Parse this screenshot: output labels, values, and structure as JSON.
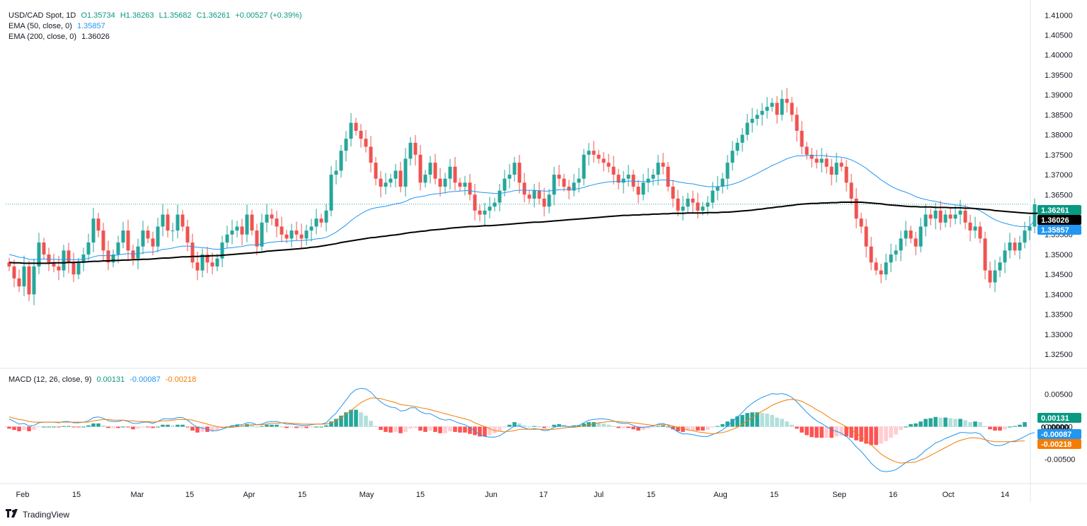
{
  "header": {
    "symbol": "USD/CAD Spot, 1D",
    "ohlc": {
      "o": "O1.35734",
      "h": "H1.36263",
      "l": "L1.35682",
      "c": "C1.36261",
      "chg": "+0.00527 (+0.39%)"
    },
    "ema50": {
      "label": "EMA (50, close, 0)",
      "value": "1.35857"
    },
    "ema200": {
      "label": "EMA (200, close, 0)",
      "value": "1.36026"
    },
    "macd": {
      "label": "MACD (12, 26, close, 9)",
      "hist": "0.00131",
      "macd": "-0.00087",
      "signal": "-0.00218"
    }
  },
  "brand": {
    "name": "TradingView"
  },
  "colors": {
    "up": "#26a69a",
    "down": "#ef5350",
    "ema50": "#2196f3",
    "ema200": "#000000",
    "macd": "#2196f3",
    "signal": "#f57c00"
  },
  "chart_data": {
    "type": "candlestick",
    "price_axis": {
      "ticks": [
        "1.41000",
        "1.40500",
        "1.40000",
        "1.39500",
        "1.39000",
        "1.38500",
        "1.38000",
        "1.37500",
        "1.37000",
        "1.36500",
        "1.36000",
        "1.35500",
        "1.35000",
        "1.34500",
        "1.34000",
        "1.33500",
        "1.33000",
        "1.32500"
      ],
      "range": [
        1.322,
        1.412
      ]
    },
    "macd_axis": {
      "ticks": [
        "0.00500",
        "0.00000",
        "-0.00500"
      ],
      "range": [
        -0.0083,
        0.0082
      ]
    },
    "time_axis": {
      "labels": [
        "Feb",
        "15",
        "Mar",
        "15",
        "Apr",
        "15",
        "May",
        "15",
        "Jun",
        "17",
        "Jul",
        "15",
        "Aug",
        "15",
        "Sep",
        "16",
        "Oct",
        "14"
      ]
    },
    "price_labels": [
      {
        "text": "1.36261",
        "value": 1.36261,
        "color": "#089981"
      },
      {
        "text": "1.36026",
        "value": 1.36026,
        "color": "#000000"
      },
      {
        "text": "1.35857",
        "value": 1.35857,
        "color": "#2196f3"
      }
    ],
    "macd_labels": [
      {
        "text": "0.00131",
        "value": 0.00131,
        "color": "#089981"
      },
      {
        "text": "0.00000",
        "value": 0.0,
        "color": "#ffffff",
        "textColor": "#131722"
      },
      {
        "text": "-0.00087",
        "value": -0.00087,
        "color": "#2196f3"
      },
      {
        "text": "-0.00218",
        "value": -0.00218,
        "color": "#f57c00"
      }
    ],
    "closes": [
      1.347,
      1.344,
      1.342,
      1.347,
      1.34,
      1.347,
      1.353,
      1.35,
      1.348,
      1.347,
      1.346,
      1.351,
      1.348,
      1.345,
      1.348,
      1.35,
      1.353,
      1.359,
      1.356,
      1.351,
      1.348,
      1.35,
      1.353,
      1.356,
      1.351,
      1.349,
      1.352,
      1.356,
      1.354,
      1.352,
      1.357,
      1.36,
      1.356,
      1.356,
      1.36,
      1.357,
      1.353,
      1.348,
      1.346,
      1.35,
      1.348,
      1.347,
      1.349,
      1.353,
      1.355,
      1.356,
      1.357,
      1.355,
      1.36,
      1.356,
      1.352,
      1.358,
      1.36,
      1.359,
      1.357,
      1.355,
      1.354,
      1.356,
      1.355,
      1.354,
      1.356,
      1.357,
      1.359,
      1.358,
      1.361,
      1.37,
      1.371,
      1.376,
      1.379,
      1.383,
      1.381,
      1.379,
      1.377,
      1.373,
      1.369,
      1.367,
      1.368,
      1.369,
      1.371,
      1.367,
      1.374,
      1.378,
      1.375,
      1.368,
      1.37,
      1.373,
      1.369,
      1.367,
      1.369,
      1.372,
      1.368,
      1.367,
      1.368,
      1.365,
      1.361,
      1.36,
      1.361,
      1.362,
      1.363,
      1.366,
      1.369,
      1.37,
      1.373,
      1.368,
      1.365,
      1.364,
      1.366,
      1.364,
      1.362,
      1.365,
      1.37,
      1.369,
      1.367,
      1.366,
      1.368,
      1.369,
      1.375,
      1.376,
      1.375,
      1.374,
      1.373,
      1.372,
      1.37,
      1.368,
      1.369,
      1.37,
      1.367,
      1.365,
      1.368,
      1.369,
      1.37,
      1.373,
      1.372,
      1.367,
      1.364,
      1.361,
      1.362,
      1.364,
      1.363,
      1.361,
      1.362,
      1.363,
      1.366,
      1.367,
      1.369,
      1.373,
      1.376,
      1.378,
      1.38,
      1.383,
      1.384,
      1.385,
      1.386,
      1.387,
      1.388,
      1.385,
      1.389,
      1.388,
      1.385,
      1.381,
      1.377,
      1.375,
      1.374,
      1.373,
      1.374,
      1.372,
      1.37,
      1.373,
      1.372,
      1.368,
      1.364,
      1.359,
      1.357,
      1.352,
      1.348,
      1.346,
      1.345,
      1.348,
      1.35,
      1.351,
      1.354,
      1.356,
      1.354,
      1.352,
      1.357,
      1.36,
      1.359,
      1.361,
      1.358,
      1.36,
      1.359,
      1.36,
      1.361,
      1.358,
      1.356,
      1.357,
      1.354,
      1.346,
      1.343,
      1.346,
      1.348,
      1.351,
      1.353,
      1.351,
      1.353,
      1.356,
      1.357,
      1.3626
    ],
    "ema50": [
      1.35,
      1.3497,
      1.3493,
      1.3492,
      1.3488,
      1.3487,
      1.3488,
      1.3489,
      1.3488,
      1.3488,
      1.3487,
      1.3488,
      1.3488,
      1.3487,
      1.3487,
      1.3488,
      1.349,
      1.3494,
      1.3497,
      1.3497,
      1.3497,
      1.3497,
      1.3499,
      1.3501,
      1.3502,
      1.3501,
      1.3502,
      1.3504,
      1.3506,
      1.3506,
      1.3509,
      1.3513,
      1.3514,
      1.3516,
      1.3519,
      1.3521,
      1.3521,
      1.352,
      1.3518,
      1.3517,
      1.3516,
      1.3514,
      1.3513,
      1.3514,
      1.3516,
      1.3517,
      1.3519,
      1.352,
      1.3523,
      1.3524,
      1.3524,
      1.3526,
      1.3529,
      1.3531,
      1.3532,
      1.3533,
      1.3533,
      1.3534,
      1.3535,
      1.3535,
      1.3536,
      1.3537,
      1.3539,
      1.354,
      1.3543,
      1.3549,
      1.3556,
      1.3565,
      1.3574,
      1.3585,
      1.3594,
      1.3602,
      1.3609,
      1.3614,
      1.3617,
      1.3619,
      1.3621,
      1.3624,
      1.3627,
      1.3629,
      1.3633,
      1.3639,
      1.3643,
      1.3645,
      1.3647,
      1.365,
      1.3652,
      1.3653,
      1.3655,
      1.3657,
      1.3658,
      1.3659,
      1.366,
      1.366,
      1.3658,
      1.3656,
      1.3655,
      1.3654,
      1.3653,
      1.3653,
      1.3655,
      1.3657,
      1.366,
      1.3661,
      1.3661,
      1.3661,
      1.3661,
      1.366,
      1.3659,
      1.3659,
      1.3661,
      1.3662,
      1.3663,
      1.3663,
      1.3664,
      1.3665,
      1.3668,
      1.3672,
      1.3675,
      1.3678,
      1.368,
      1.3682,
      1.3683,
      1.3683,
      1.3683,
      1.3684,
      1.3684,
      1.3683,
      1.3683,
      1.3683,
      1.3684,
      1.3686,
      1.3687,
      1.3686,
      1.3685,
      1.3682,
      1.368,
      1.3678,
      1.3677,
      1.3674,
      1.3672,
      1.367,
      1.367,
      1.367,
      1.3671,
      1.3673,
      1.3676,
      1.368,
      1.3685,
      1.3691,
      1.3697,
      1.3703,
      1.371,
      1.3716,
      1.3723,
      1.3728,
      1.3734,
      1.374,
      1.3744,
      1.3747,
      1.3747,
      1.3748,
      1.3748,
      1.3748,
      1.3748,
      1.3747,
      1.3745,
      1.3745,
      1.3744,
      1.3741,
      1.3737,
      1.3731,
      1.3724,
      1.3716,
      1.3706,
      1.3697,
      1.3687,
      1.3679,
      1.3671,
      1.3665,
      1.366,
      1.3656,
      1.3651,
      1.3645,
      1.3641,
      1.3638,
      1.3635,
      1.3633,
      1.363,
      1.3628,
      1.3626,
      1.3624,
      1.3623,
      1.362,
      1.3617,
      1.3614,
      1.361,
      1.3602,
      1.3594,
      1.3587,
      1.3582,
      1.3578,
      1.3575,
      1.3572,
      1.357,
      1.357,
      1.357,
      1.3586
    ],
    "ema200": [
      1.348,
      1.3479,
      1.3479,
      1.3478,
      1.3478,
      1.3478,
      1.3478,
      1.3478,
      1.3478,
      1.3479,
      1.3479,
      1.3479,
      1.348,
      1.348,
      1.3481,
      1.3481,
      1.3482,
      1.3483,
      1.3483,
      1.3484,
      1.3484,
      1.3485,
      1.3485,
      1.3486,
      1.3486,
      1.3487,
      1.3487,
      1.3488,
      1.3488,
      1.3489,
      1.349,
      1.3491,
      1.3491,
      1.3492,
      1.3493,
      1.3494,
      1.3494,
      1.3495,
      1.3495,
      1.3496,
      1.3496,
      1.3497,
      1.3497,
      1.3498,
      1.3499,
      1.35,
      1.3501,
      1.3502,
      1.3503,
      1.3504,
      1.3505,
      1.3506,
      1.3508,
      1.3509,
      1.351,
      1.3511,
      1.3512,
      1.3513,
      1.3514,
      1.3515,
      1.3516,
      1.3518,
      1.3519,
      1.3521,
      1.3523,
      1.3525,
      1.3527,
      1.353,
      1.3532,
      1.3534,
      1.3536,
      1.3538,
      1.354,
      1.3542,
      1.3543,
      1.3545,
      1.3546,
      1.3548,
      1.3549,
      1.3551,
      1.3553,
      1.3555,
      1.3556,
      1.3558,
      1.3559,
      1.3561,
      1.3562,
      1.3563,
      1.3564,
      1.3566,
      1.3567,
      1.3568,
      1.3569,
      1.357,
      1.357,
      1.3571,
      1.3572,
      1.3572,
      1.3573,
      1.3574,
      1.3575,
      1.3576,
      1.3577,
      1.3578,
      1.3579,
      1.358,
      1.3581,
      1.3581,
      1.3582,
      1.3583,
      1.3584,
      1.3585,
      1.3586,
      1.3587,
      1.3588,
      1.3589,
      1.359,
      1.3591,
      1.3592,
      1.3593,
      1.3594,
      1.3595,
      1.3596,
      1.3597,
      1.3598,
      1.3598,
      1.3599,
      1.3599,
      1.36,
      1.36,
      1.3601,
      1.3601,
      1.3602,
      1.3602,
      1.3603,
      1.3603,
      1.3603,
      1.3604,
      1.3604,
      1.3604,
      1.3604,
      1.3605,
      1.3605,
      1.3605,
      1.3606,
      1.3606,
      1.3607,
      1.3608,
      1.3609,
      1.361,
      1.3611,
      1.3613,
      1.3614,
      1.3616,
      1.3617,
      1.3619,
      1.362,
      1.3622,
      1.3623,
      1.3625,
      1.3626,
      1.3627,
      1.3628,
      1.3628,
      1.3629,
      1.3629,
      1.363,
      1.363,
      1.3631,
      1.3631,
      1.3631,
      1.3631,
      1.3631,
      1.363,
      1.3629,
      1.3628,
      1.3627,
      1.3625,
      1.3624,
      1.3623,
      1.3622,
      1.3621,
      1.362,
      1.362,
      1.3619,
      1.3619,
      1.3619,
      1.3618,
      1.3618,
      1.3618,
      1.3617,
      1.3617,
      1.3617,
      1.3616,
      1.3616,
      1.3615,
      1.3614,
      1.3613,
      1.3612,
      1.361,
      1.3609,
      1.3608,
      1.3607,
      1.3606,
      1.3605,
      1.3604,
      1.3603,
      1.3603,
      1.3603
    ],
    "macd": [
      0.0012,
      0.0008,
      0.0004,
      0.0005,
      0.0001,
      0.0002,
      0.0006,
      0.0007,
      0.0007,
      0.0007,
      0.0006,
      0.0008,
      0.0008,
      0.0006,
      0.0006,
      0.0007,
      0.0009,
      0.0014,
      0.0015,
      0.0013,
      0.0009,
      0.0008,
      0.0008,
      0.001,
      0.0008,
      0.0005,
      0.0005,
      0.0007,
      0.0007,
      0.0005,
      0.0008,
      0.0012,
      0.0012,
      0.0012,
      0.0014,
      0.0014,
      0.001,
      0.0004,
      -0.0001,
      -0.0002,
      -0.0004,
      -0.0006,
      -0.0006,
      -0.0004,
      -0.0001,
      0.0001,
      0.0003,
      0.0003,
      0.0006,
      0.0006,
      0.0003,
      0.0004,
      0.0007,
      0.0008,
      0.0008,
      0.0006,
      0.0004,
      0.0004,
      0.0003,
      0.0002,
      0.0002,
      0.0003,
      0.0004,
      0.0004,
      0.0006,
      0.0014,
      0.0021,
      0.0031,
      0.0041,
      0.0051,
      0.0057,
      0.0059,
      0.0058,
      0.0053,
      0.0045,
      0.0038,
      0.0033,
      0.003,
      0.0029,
      0.0024,
      0.0025,
      0.0029,
      0.0029,
      0.0023,
      0.002,
      0.002,
      0.0016,
      0.0012,
      0.001,
      0.0011,
      0.0008,
      0.0005,
      0.0003,
      -0.0001,
      -0.0007,
      -0.0012,
      -0.0015,
      -0.0016,
      -0.0016,
      -0.0014,
      -0.0009,
      -0.0004,
      0.0001,
      0.0001,
      -0.0002,
      -0.0004,
      -0.0003,
      -0.0004,
      -0.0006,
      -0.0005,
      -0.0001,
      0.0001,
      0.0001,
      0.0,
      0.0001,
      0.0002,
      0.0006,
      0.001,
      0.0011,
      0.0012,
      0.0012,
      0.0011,
      0.0009,
      0.0006,
      0.0005,
      0.0005,
      0.0002,
      -0.0001,
      -0.0001,
      0.0,
      0.0001,
      0.0004,
      0.0005,
      0.0002,
      -0.0003,
      -0.0008,
      -0.0011,
      -0.0011,
      -0.0012,
      -0.0014,
      -0.0015,
      -0.0015,
      -0.0012,
      -0.0009,
      -0.0005,
      0.0001,
      0.0008,
      0.0015,
      0.0022,
      0.003,
      0.0036,
      0.0041,
      0.0045,
      0.0048,
      0.0051,
      0.005,
      0.0051,
      0.0049,
      0.0045,
      0.0038,
      0.003,
      0.0022,
      0.0015,
      0.0009,
      0.0005,
      0.0,
      -0.0005,
      -0.0007,
      -0.001,
      -0.0015,
      -0.0022,
      -0.0031,
      -0.0038,
      -0.0047,
      -0.0056,
      -0.0063,
      -0.0068,
      -0.0069,
      -0.0068,
      -0.0066,
      -0.0061,
      -0.0055,
      -0.0051,
      -0.0049,
      -0.0043,
      -0.0036,
      -0.0031,
      -0.0025,
      -0.0022,
      -0.0018,
      -0.0015,
      -0.0012,
      -0.0009,
      -0.0009,
      -0.001,
      -0.0009,
      -0.0011,
      -0.0019,
      -0.0026,
      -0.0029,
      -0.0029,
      -0.0027,
      -0.0023,
      -0.0022,
      -0.0019,
      -0.0015,
      -0.0011,
      -0.0009
    ],
    "signal": [
      0.0015,
      0.0013,
      0.0011,
      0.001,
      0.0008,
      0.0007,
      0.0007,
      0.0007,
      0.0007,
      0.0007,
      0.0007,
      0.0007,
      0.0007,
      0.0007,
      0.0007,
      0.0007,
      0.0007,
      0.0009,
      0.001,
      0.0011,
      0.0011,
      0.001,
      0.001,
      0.001,
      0.0009,
      0.0009,
      0.0008,
      0.0008,
      0.0008,
      0.0007,
      0.0008,
      0.0009,
      0.0009,
      0.001,
      0.0011,
      0.0011,
      0.0011,
      0.001,
      0.0008,
      0.0006,
      0.0004,
      0.0002,
      0.0,
      -0.0001,
      -0.0001,
      -0.0001,
      0.0,
      0.0001,
      0.0002,
      0.0003,
      0.0003,
      0.0003,
      0.0004,
      0.0005,
      0.0005,
      0.0006,
      0.0006,
      0.0005,
      0.0005,
      0.0004,
      0.0004,
      0.0004,
      0.0004,
      0.0004,
      0.0004,
      0.0006,
      0.0009,
      0.0014,
      0.0019,
      0.0025,
      0.0031,
      0.0037,
      0.0041,
      0.0044,
      0.0044,
      0.0043,
      0.0041,
      0.0039,
      0.0037,
      0.0034,
      0.0033,
      0.0032,
      0.0031,
      0.0029,
      0.0028,
      0.0026,
      0.0024,
      0.0022,
      0.002,
      0.0018,
      0.0016,
      0.0014,
      0.0012,
      0.001,
      0.0006,
      0.0003,
      0.0,
      -0.0003,
      -0.0006,
      -0.0007,
      -0.0008,
      -0.0007,
      -0.0006,
      -0.0004,
      -0.0004,
      -0.0004,
      -0.0004,
      -0.0004,
      -0.0004,
      -0.0004,
      -0.0004,
      -0.0003,
      -0.0002,
      -0.0001,
      -0.0001,
      0.0,
      0.0001,
      0.0003,
      0.0004,
      0.0006,
      0.0007,
      0.0008,
      0.0008,
      0.0008,
      0.0007,
      0.0007,
      0.0006,
      0.0005,
      0.0004,
      0.0003,
      0.0002,
      0.0003,
      0.0003,
      0.0003,
      0.0001,
      -0.0001,
      -0.0003,
      -0.0005,
      -0.0006,
      -0.0008,
      -0.0009,
      -0.001,
      -0.0011,
      -0.001,
      -0.0009,
      -0.0007,
      -0.0004,
      -0.0001,
      0.0004,
      0.0009,
      0.0014,
      0.0019,
      0.0024,
      0.0028,
      0.0033,
      0.0036,
      0.0039,
      0.0041,
      0.0042,
      0.0041,
      0.0039,
      0.0035,
      0.0031,
      0.0026,
      0.0022,
      0.0017,
      0.0012,
      0.0008,
      0.0004,
      0.0,
      -0.0005,
      -0.001,
      -0.0015,
      -0.0021,
      -0.0028,
      -0.0035,
      -0.0042,
      -0.0047,
      -0.0051,
      -0.0054,
      -0.0056,
      -0.0055,
      -0.0055,
      -0.0054,
      -0.0051,
      -0.0048,
      -0.0044,
      -0.004,
      -0.0036,
      -0.0032,
      -0.0028,
      -0.0024,
      -0.0021,
      -0.0019,
      -0.0017,
      -0.0017,
      -0.0018,
      -0.002,
      -0.0022,
      -0.0023,
      -0.0023,
      -0.0023,
      -0.0023,
      -0.0023,
      -0.0022,
      -0.0022
    ]
  }
}
